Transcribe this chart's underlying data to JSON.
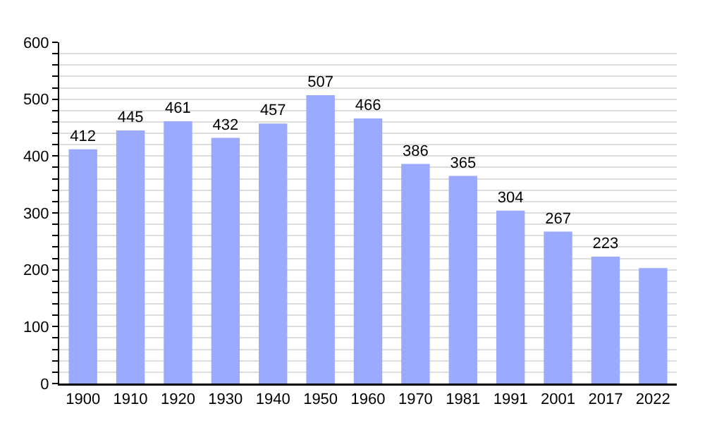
{
  "chart_data": {
    "type": "bar",
    "categories": [
      "1900",
      "1910",
      "1920",
      "1930",
      "1940",
      "1950",
      "1960",
      "1970",
      "1981",
      "1991",
      "2001",
      "2017",
      "2022"
    ],
    "values": [
      412,
      445,
      461,
      432,
      457,
      507,
      466,
      386,
      365,
      304,
      267,
      223,
      203
    ],
    "value_labels": [
      "412",
      "445",
      "461",
      "432",
      "457",
      "507",
      "466",
      "386",
      "365",
      "304",
      "267",
      "223",
      null
    ],
    "color": "#99aaff",
    "ylim": [
      0,
      600
    ],
    "yticks": [
      0,
      {
        "value": 20,
        "label": null
      },
      {
        "value": 40,
        "label": null
      },
      {
        "value": 60,
        "label": null
      },
      {
        "value": 80,
        "label": null
      },
      100,
      {
        "value": 120,
        "label": null
      },
      {
        "value": 140,
        "label": null
      },
      {
        "value": 160,
        "label": null
      },
      {
        "value": 180,
        "label": null
      },
      200,
      {
        "value": 220,
        "label": null
      },
      {
        "value": 240,
        "label": null
      },
      {
        "value": 260,
        "label": null
      },
      {
        "value": 280,
        "label": null
      },
      300,
      {
        "value": 320,
        "label": null
      },
      {
        "value": 340,
        "label": null
      },
      {
        "value": 360,
        "label": null
      },
      {
        "value": 380,
        "label": null
      },
      400,
      {
        "value": 420,
        "label": null
      },
      {
        "value": 440,
        "label": null
      },
      {
        "value": 460,
        "label": null
      },
      {
        "value": 480,
        "label": null
      },
      500,
      {
        "value": 520,
        "label": null
      },
      {
        "value": 540,
        "label": null
      },
      {
        "value": 560,
        "label": null
      },
      {
        "value": 580,
        "label": null
      },
      600
    ],
    "grid": "y"
  }
}
